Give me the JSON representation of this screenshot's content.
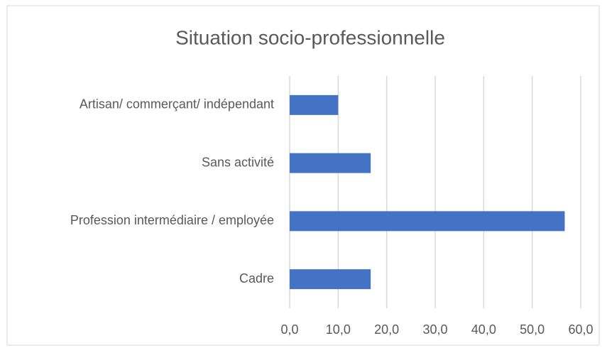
{
  "chart_data": {
    "type": "barh",
    "title": "Situation socio-professionnelle",
    "categories": [
      "Artisan/ commerçant/ indépendant",
      "Sans activité",
      "Profession intermédiaire / employée",
      "Cadre"
    ],
    "values": [
      10.0,
      16.7,
      56.7,
      16.7
    ],
    "color": "#4472c4",
    "xlim": [
      0,
      60
    ],
    "xticks": [
      {
        "value": 0,
        "label": "0,0"
      },
      {
        "value": 10,
        "label": "10,0"
      },
      {
        "value": 20,
        "label": "20,0"
      },
      {
        "value": 30,
        "label": "30,0"
      },
      {
        "value": 40,
        "label": "40,0"
      },
      {
        "value": 50,
        "label": "50,0"
      },
      {
        "value": 60,
        "label": "60,0"
      }
    ],
    "grid": true
  }
}
